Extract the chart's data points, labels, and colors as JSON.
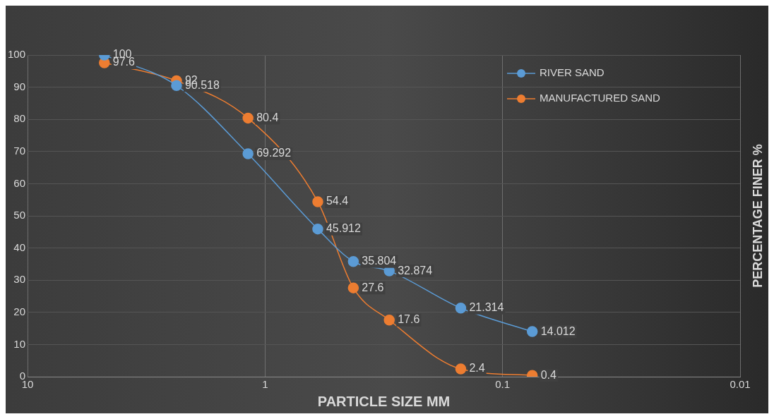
{
  "chart_data": {
    "type": "line",
    "xlabel": "PARTICLE SIZE MM",
    "ylabel": "PERCENTAGE FINER %",
    "xlim": [
      10,
      0.01
    ],
    "xticks": [
      10,
      1,
      0.1,
      0.01
    ],
    "log": "x",
    "ylim": [
      0,
      100
    ],
    "yticks": [
      0,
      10,
      20,
      30,
      40,
      50,
      60,
      70,
      80,
      90,
      100
    ],
    "grid": true,
    "legend": "top right",
    "marker": "circle",
    "data_labels": true,
    "series": [
      {
        "name": "RIVER SAND",
        "color": "#5b9bd5",
        "x": [
          4.75,
          2.36,
          1.18,
          0.6,
          0.425,
          0.3,
          0.15,
          0.075
        ],
        "values": [
          100,
          90.518,
          69.292,
          45.912,
          35.804,
          32.874,
          21.314,
          14.012
        ]
      },
      {
        "name": "MANUFACTURED SAND",
        "color": "#ed7d31",
        "x": [
          4.75,
          2.36,
          1.18,
          0.6,
          0.425,
          0.3,
          0.15,
          0.075
        ],
        "values": [
          97.6,
          92,
          80.4,
          54.4,
          27.6,
          17.6,
          2.4,
          0.4
        ]
      }
    ]
  }
}
